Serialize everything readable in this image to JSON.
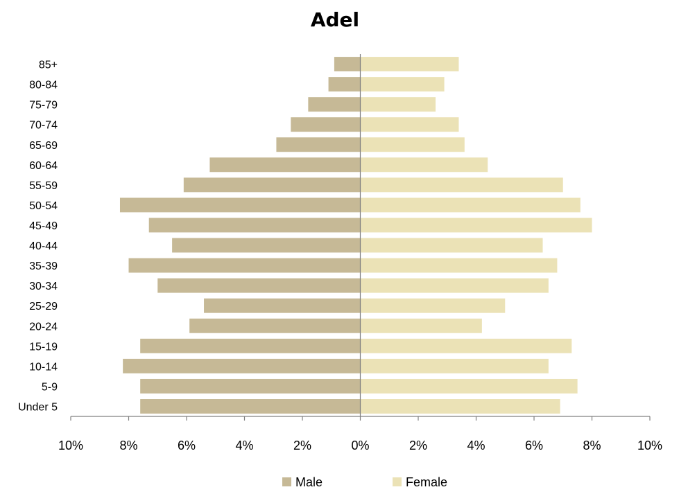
{
  "chart_data": {
    "type": "bar",
    "orientation": "horizontal",
    "layout": "population-pyramid",
    "title": "Adel",
    "categories": [
      "Under 5",
      "5-9",
      "10-14",
      "15-19",
      "20-24",
      "25-29",
      "30-34",
      "35-39",
      "40-44",
      "45-49",
      "50-54",
      "55-59",
      "60-64",
      "65-69",
      "70-74",
      "75-79",
      "80-84",
      "85+"
    ],
    "series": [
      {
        "name": "Male",
        "color": "#c6b996",
        "values": [
          7.6,
          7.6,
          8.2,
          7.6,
          5.9,
          5.4,
          7.0,
          8.0,
          6.5,
          7.3,
          8.3,
          6.1,
          5.2,
          2.9,
          2.4,
          1.8,
          1.1,
          0.9
        ]
      },
      {
        "name": "Female",
        "color": "#ebe2b6",
        "values": [
          6.9,
          7.5,
          6.5,
          7.3,
          4.2,
          5.0,
          6.5,
          6.8,
          6.3,
          8.0,
          7.6,
          7.0,
          4.4,
          3.6,
          3.4,
          2.6,
          2.9,
          3.4
        ]
      }
    ],
    "xlim": [
      -10,
      10
    ],
    "xticks": [
      -10,
      -8,
      -6,
      -4,
      -2,
      0,
      2,
      4,
      6,
      8,
      10
    ],
    "xtick_labels": [
      "10%",
      "8%",
      "6%",
      "4%",
      "2%",
      "0%",
      "2%",
      "4%",
      "6%",
      "8%",
      "10%"
    ],
    "grid": false,
    "legend": "bottom-center",
    "axis_color": "#808080"
  }
}
